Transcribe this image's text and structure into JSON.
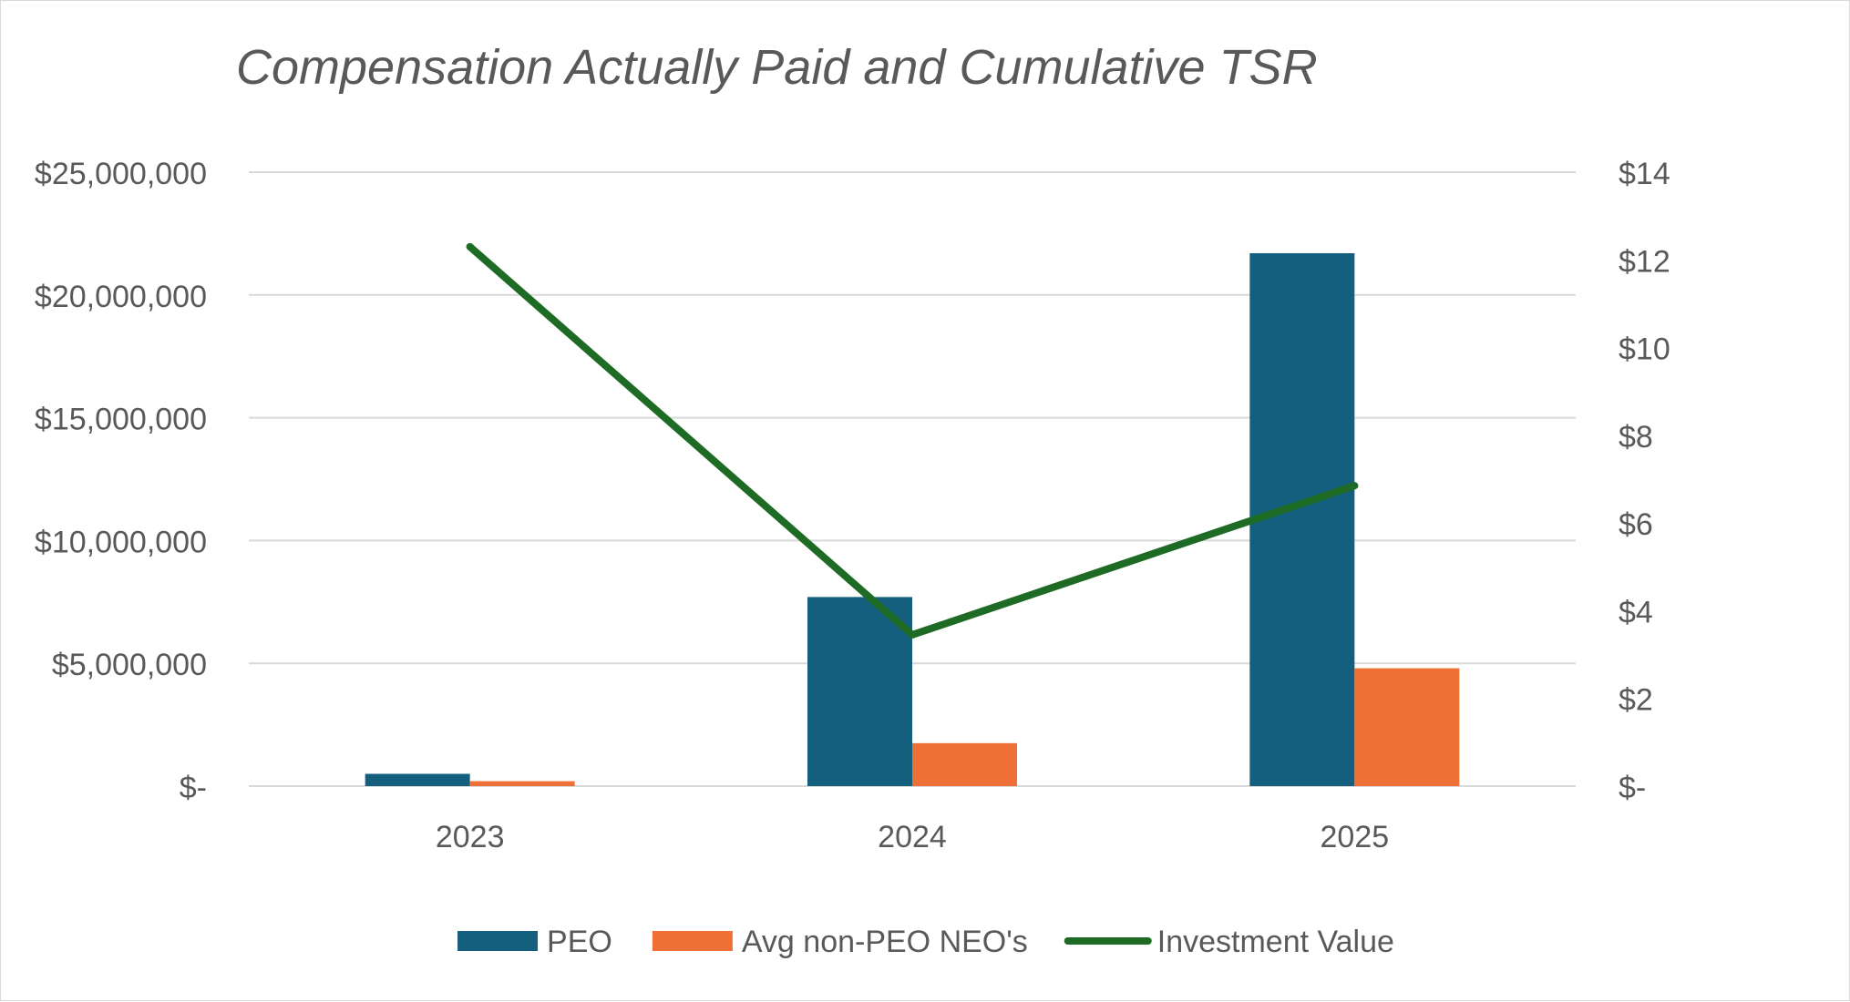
{
  "chart_data": {
    "type": "bar",
    "title": "Compensation Actually Paid and Cumulative TSR",
    "categories": [
      "2023",
      "2024",
      "2025"
    ],
    "series": [
      {
        "name": "PEO",
        "type": "bar",
        "axis": "left",
        "color": "#155f7e",
        "values": [
          500000,
          7700000,
          21700000
        ]
      },
      {
        "name": "Avg non-PEO NEO's",
        "type": "bar",
        "axis": "left",
        "color": "#ee7036",
        "values": [
          200000,
          1750000,
          4800000
        ]
      },
      {
        "name": "Investment Value",
        "type": "line",
        "axis": "right",
        "color": "#1e6b25",
        "values": [
          12.3,
          3.45,
          6.85
        ]
      }
    ],
    "y_left": {
      "ylim": [
        0,
        25000000
      ],
      "ticks": [
        0,
        5000000,
        10000000,
        15000000,
        20000000,
        25000000
      ],
      "tick_labels": [
        "$-",
        "$5,000,000",
        "$10,000,000",
        "$15,000,000",
        "$20,000,000",
        "$25,000,000"
      ]
    },
    "y_right": {
      "ylim": [
        0,
        14
      ],
      "ticks": [
        0,
        2,
        4,
        6,
        8,
        10,
        12,
        14
      ],
      "tick_labels": [
        "$-",
        "$2",
        "$4",
        "$6",
        "$8",
        "$10",
        "$12",
        "$14"
      ]
    },
    "grid": true,
    "legend_position": "bottom",
    "colors": {
      "grid": "#d9d9d9",
      "text": "#595959",
      "title": "#595959",
      "frame": "#d9d9d9"
    }
  }
}
